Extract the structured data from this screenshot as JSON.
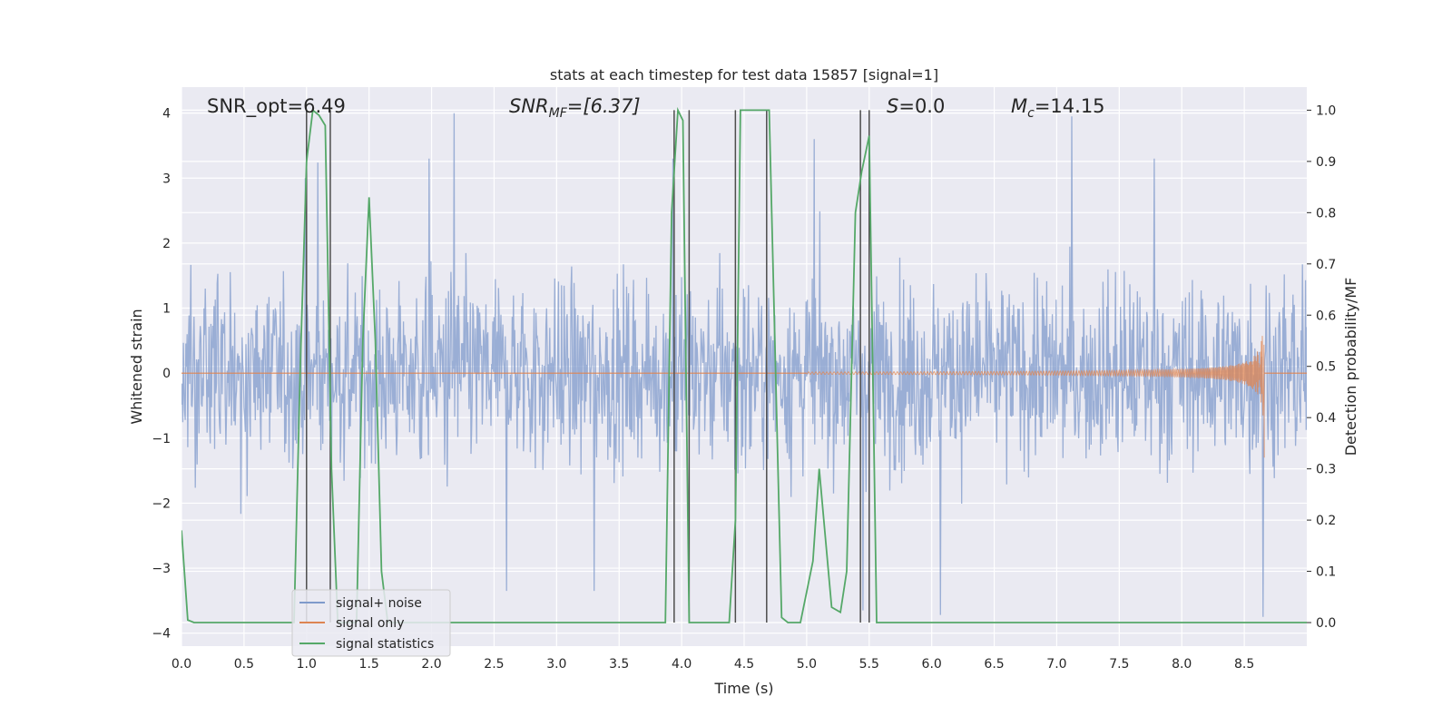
{
  "chart_data": {
    "type": "line",
    "title": "stats at each timestep for test data 15857 [signal=1]",
    "xlabel": "Time (s)",
    "ylabel": "Whitened strain",
    "ylabel_right": "Detection probability/MF",
    "xlim": [
      0,
      9
    ],
    "ylim": [
      -4.2,
      4.4
    ],
    "ylim_right": [
      -0.046,
      1.045
    ],
    "xticks": [
      0,
      0.5,
      1,
      1.5,
      2,
      2.5,
      3,
      3.5,
      4,
      4.5,
      5,
      5.5,
      6,
      6.5,
      7,
      7.5,
      8,
      8.5
    ],
    "xtick_labels": [
      "0.0",
      "0.5",
      "1.0",
      "1.5",
      "2.0",
      "2.5",
      "3.0",
      "3.5",
      "4.0",
      "4.5",
      "5.0",
      "5.5",
      "6.0",
      "6.5",
      "7.0",
      "7.5",
      "8.0",
      "8.5"
    ],
    "yticks": [
      -4,
      -3,
      -2,
      -1,
      0,
      1,
      2,
      3,
      4
    ],
    "ytick_labels": [
      "−4",
      "−3",
      "−2",
      "−1",
      "0",
      "1",
      "2",
      "3",
      "4"
    ],
    "yticks_right": [
      0,
      0.1,
      0.2,
      0.3,
      0.4,
      0.5,
      0.6,
      0.7,
      0.8,
      0.9,
      1.0
    ],
    "ytick_labels_right": [
      "0.0",
      "0.1",
      "0.2",
      "0.3",
      "0.4",
      "0.5",
      "0.6",
      "0.7",
      "0.8",
      "0.9",
      "1.0"
    ],
    "grid": true,
    "legend_position": "lower-left",
    "annotations": [
      {
        "label": "SNR_opt=6.49",
        "italic": false
      },
      {
        "label": "SNR",
        "sub": "MF",
        "suffix": "=[6.37]",
        "italic": true
      },
      {
        "label": "S",
        "suffix": "=0.0",
        "italic": true
      },
      {
        "label": "M",
        "sub": "c",
        "suffix": "=14.15",
        "italic": true
      }
    ],
    "series": [
      {
        "name": "signal+ noise",
        "color": "#7f9acb",
        "axis": "left",
        "style": "noisy band",
        "time_range": [
          0,
          9
        ],
        "typical_amplitude": 1.0,
        "peaks": [
          {
            "x": 0.99,
            "y": 3.0
          },
          {
            "x": 1.09,
            "y": 3.24
          },
          {
            "x": 1.98,
            "y": 3.3
          },
          {
            "x": 2.18,
            "y": 4.0
          },
          {
            "x": 2.6,
            "y": -3.35
          },
          {
            "x": 3.3,
            "y": -3.35
          },
          {
            "x": 3.93,
            "y": 3.3
          },
          {
            "x": 5.06,
            "y": 3.6
          },
          {
            "x": 5.45,
            "y": -3.65
          },
          {
            "x": 6.07,
            "y": -3.72
          },
          {
            "x": 7.12,
            "y": 3.95
          },
          {
            "x": 7.78,
            "y": 3.3
          },
          {
            "x": 8.65,
            "y": -3.75
          }
        ]
      },
      {
        "name": "signal only",
        "color": "#dd8452",
        "axis": "left",
        "style": "chirp",
        "start": 5.0,
        "end": 8.66,
        "final_amplitude": 0.9,
        "final_negative": -1.3
      },
      {
        "name": "signal statistics",
        "color": "#55a868",
        "axis": "right",
        "x": [
          0.0,
          0.05,
          0.1,
          0.15,
          0.2,
          0.25,
          0.3,
          0.5,
          0.7,
          0.9,
          0.95,
          1.0,
          1.05,
          1.1,
          1.15,
          1.2,
          1.25,
          1.3,
          1.35,
          1.4,
          1.45,
          1.5,
          1.55,
          1.6,
          1.65,
          1.7,
          1.8,
          2.0,
          2.5,
          3.0,
          3.5,
          3.8,
          3.87,
          3.92,
          3.97,
          4.01,
          4.06,
          4.12,
          4.2,
          4.3,
          4.38,
          4.43,
          4.47,
          4.5,
          4.55,
          4.6,
          4.7,
          4.8,
          4.85,
          4.95,
          5.05,
          5.1,
          5.2,
          5.27,
          5.32,
          5.39,
          5.44,
          5.5,
          5.56,
          5.6,
          5.8,
          6.0,
          7.0,
          8.0,
          9.0
        ],
        "y": [
          0.18,
          0.005,
          0.0,
          0.0,
          0.0,
          0.0,
          0.0,
          0.0,
          0.0,
          0.0,
          0.5,
          0.9,
          1.0,
          0.99,
          0.97,
          0.3,
          0.0,
          0.0,
          0.0,
          0.0,
          0.55,
          0.83,
          0.55,
          0.1,
          0.0,
          0.0,
          0.0,
          0.0,
          0.0,
          0.0,
          0.0,
          0.0,
          0.0,
          0.8,
          1.0,
          0.98,
          0.0,
          0.0,
          0.0,
          0.0,
          0.0,
          0.2,
          1.0,
          1.0,
          1.0,
          1.0,
          1.0,
          0.01,
          0.0,
          0.0,
          0.12,
          0.3,
          0.03,
          0.02,
          0.1,
          0.8,
          0.88,
          0.95,
          0.0,
          0.0,
          0.0,
          0.0,
          0.0,
          0.0,
          0.0
        ]
      }
    ],
    "vertical_lines": [
      1.0,
      1.19,
      3.94,
      4.06,
      4.43,
      4.68,
      5.43,
      5.5
    ]
  }
}
